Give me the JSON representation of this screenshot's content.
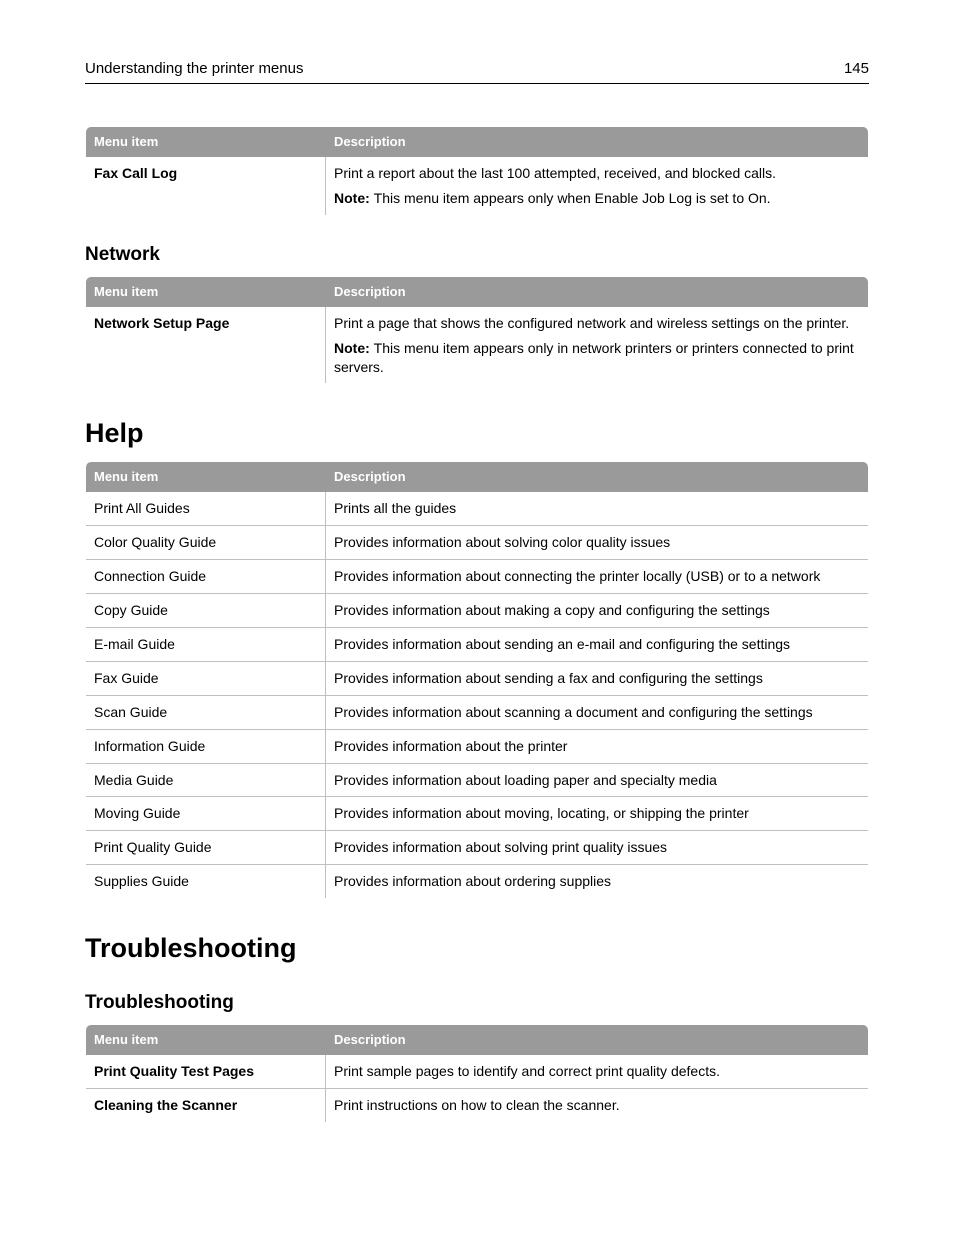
{
  "header": {
    "title": "Understanding the printer menus",
    "page_number": "145"
  },
  "colors": {
    "header_bg": "#9a9a9a",
    "header_fg": "#ffffff",
    "border": "#bfbfbf",
    "text": "#000000"
  },
  "table_headers": {
    "menu_item": "Menu item",
    "description": "Description"
  },
  "labels": {
    "note": "Note:"
  },
  "tables": {
    "fax": {
      "rows": [
        {
          "item": "Fax Call Log",
          "item_bold": true,
          "desc": "Print a report about the last 100 attempted, received, and blocked calls.",
          "note": "This menu item appears only when Enable Job Log is set to On."
        }
      ]
    },
    "network": {
      "heading": "Network",
      "rows": [
        {
          "item": "Network Setup Page",
          "item_bold": true,
          "desc": "Print a page that shows the configured network and wireless settings on the printer.",
          "note": "This menu item appears only in network printers or printers connected to print servers."
        }
      ]
    },
    "help": {
      "heading": "Help",
      "rows": [
        {
          "item": "Print All Guides",
          "desc": "Prints all the guides"
        },
        {
          "item": "Color Quality Guide",
          "desc": "Provides information about solving color quality issues"
        },
        {
          "item": "Connection Guide",
          "desc": "Provides information about connecting the printer locally (USB) or to a network"
        },
        {
          "item": "Copy Guide",
          "desc": "Provides information about making a copy and configuring the settings"
        },
        {
          "item": "E-mail Guide",
          "desc": "Provides information about sending an e-mail and configuring the settings"
        },
        {
          "item": "Fax Guide",
          "desc": "Provides information about sending a fax and configuring the settings"
        },
        {
          "item": "Scan Guide",
          "desc": "Provides information about scanning a document and configuring the settings"
        },
        {
          "item": "Information Guide",
          "desc": "Provides information about the printer"
        },
        {
          "item": "Media Guide",
          "desc": "Provides information about loading paper and specialty media"
        },
        {
          "item": "Moving Guide",
          "desc": "Provides information about moving, locating, or shipping the printer"
        },
        {
          "item": "Print Quality Guide",
          "desc": "Provides information about solving print quality issues"
        },
        {
          "item": "Supplies Guide",
          "desc": "Provides information about ordering supplies"
        }
      ]
    },
    "troubleshooting": {
      "heading": "Troubleshooting",
      "subheading": "Troubleshooting",
      "rows": [
        {
          "item": "Print Quality Test Pages",
          "item_bold": true,
          "desc": "Print sample pages to identify and correct print quality defects."
        },
        {
          "item": "Cleaning the Scanner",
          "item_bold": true,
          "desc": "Print instructions on how to clean the scanner."
        }
      ]
    }
  }
}
